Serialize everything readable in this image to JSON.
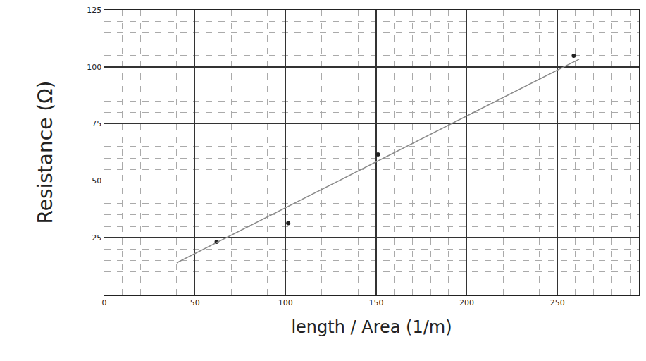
{
  "chart_data": {
    "type": "scatter",
    "x_label": "length / Area (1/m)",
    "y_label": "Resistance (Ω)",
    "series": [
      {
        "type": "scatter",
        "marker": "circle",
        "color": "#222222",
        "x": [
          62,
          101.5,
          151,
          259
        ],
        "values": [
          23.2,
          31.4,
          61.6,
          104.9
        ]
      },
      {
        "type": "line",
        "line_style": "solid",
        "color": "#8a8a8a",
        "x": [
          40,
          262
        ],
        "values": [
          14,
          103.4
        ]
      }
    ],
    "xlim": [
      0,
      295
    ],
    "xticks": [
      0,
      50,
      100,
      150,
      200,
      250
    ],
    "ylim": [
      0,
      125
    ],
    "yticks": [
      25,
      50,
      75,
      100,
      125
    ],
    "grid": true
  }
}
